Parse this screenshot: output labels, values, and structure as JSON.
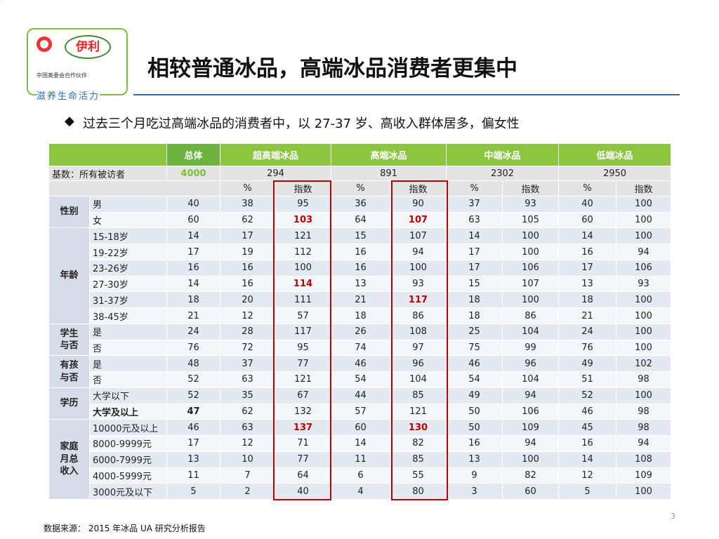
{
  "logo": {
    "brand": "伊利",
    "partner": "中国奥委会合作伙伴",
    "slogan": "滋养生命活力"
  },
  "title": "相较普通冰品，高端冰品消费者更集中",
  "bullet": "过去三个月吃过高端冰品的消费者中，以 27-37 岁、高收入群体居多，偏女性",
  "table": {
    "header": [
      "总体",
      "超高端冰品",
      "高端冰品",
      "中端冰品",
      "低端冰品"
    ],
    "base_label": "基数：所有被访者",
    "base": [
      4000,
      294,
      891,
      2302,
      2950
    ],
    "subheader": [
      "%",
      "指数",
      "%",
      "指数",
      "%",
      "指数",
      "%",
      "指数"
    ],
    "groups": [
      {
        "label": "性别",
        "rows": [
          {
            "label": "男",
            "values": [
              40,
              38,
              95,
              36,
              90,
              37,
              93,
              40,
              100
            ]
          },
          {
            "label": "女",
            "values": [
              60,
              62,
              103,
              64,
              107,
              63,
              105,
              60,
              100
            ]
          }
        ]
      },
      {
        "label": "年龄",
        "rows": [
          {
            "label": "15-18岁",
            "values": [
              14,
              17,
              121,
              15,
              107,
              14,
              100,
              14,
              100
            ]
          },
          {
            "label": "19-22岁",
            "values": [
              17,
              19,
              112,
              16,
              94,
              17,
              100,
              16,
              94
            ]
          },
          {
            "label": "23-26岁",
            "values": [
              16,
              16,
              100,
              16,
              100,
              17,
              106,
              17,
              106
            ]
          },
          {
            "label": "27-30岁",
            "values": [
              14,
              16,
              114,
              13,
              93,
              15,
              107,
              13,
              93
            ]
          },
          {
            "label": "31-37岁",
            "values": [
              18,
              20,
              111,
              21,
              117,
              18,
              100,
              18,
              100
            ]
          },
          {
            "label": "38-45岁",
            "values": [
              21,
              12,
              57,
              18,
              86,
              18,
              86,
              21,
              100
            ]
          }
        ]
      },
      {
        "label": "学生与否",
        "rows": [
          {
            "label": "是",
            "values": [
              24,
              28,
              117,
              26,
              108,
              25,
              104,
              24,
              100
            ]
          },
          {
            "label": "否",
            "values": [
              76,
              72,
              95,
              74,
              97,
              75,
              99,
              76,
              100
            ]
          }
        ]
      },
      {
        "label": "有孩与否",
        "rows": [
          {
            "label": "是",
            "values": [
              48,
              37,
              77,
              46,
              96,
              46,
              96,
              49,
              102
            ]
          },
          {
            "label": "否",
            "values": [
              52,
              63,
              121,
              54,
              104,
              54,
              104,
              51,
              98
            ]
          }
        ]
      },
      {
        "label": "学历",
        "rows": [
          {
            "label": "大学以下",
            "values": [
              52,
              35,
              67,
              44,
              85,
              49,
              94,
              52,
              100
            ]
          },
          {
            "label": "大学及以上",
            "values": [
              47,
              62,
              132,
              57,
              121,
              50,
              106,
              46,
              98
            ]
          }
        ]
      },
      {
        "label": "家庭月总收入",
        "rows": [
          {
            "label": "10000元及以上",
            "values": [
              46,
              63,
              137,
              60,
              130,
              50,
              109,
              45,
              98
            ]
          },
          {
            "label": "8000-9999元",
            "values": [
              17,
              12,
              71,
              14,
              82,
              16,
              94,
              16,
              94
            ]
          },
          {
            "label": "6000-7999元",
            "values": [
              13,
              10,
              77,
              11,
              85,
              13,
              100,
              14,
              108
            ]
          },
          {
            "label": "4000-5999元",
            "values": [
              11,
              7,
              64,
              6,
              55,
              9,
              82,
              12,
              109
            ]
          },
          {
            "label": "3000元及以下",
            "values": [
              5,
              2,
              40,
              4,
              80,
              3,
              60,
              5,
              100
            ]
          }
        ]
      }
    ]
  },
  "source": "数据来源： 2015 年冰品 UA 研究分析报告",
  "page_number": 3
}
